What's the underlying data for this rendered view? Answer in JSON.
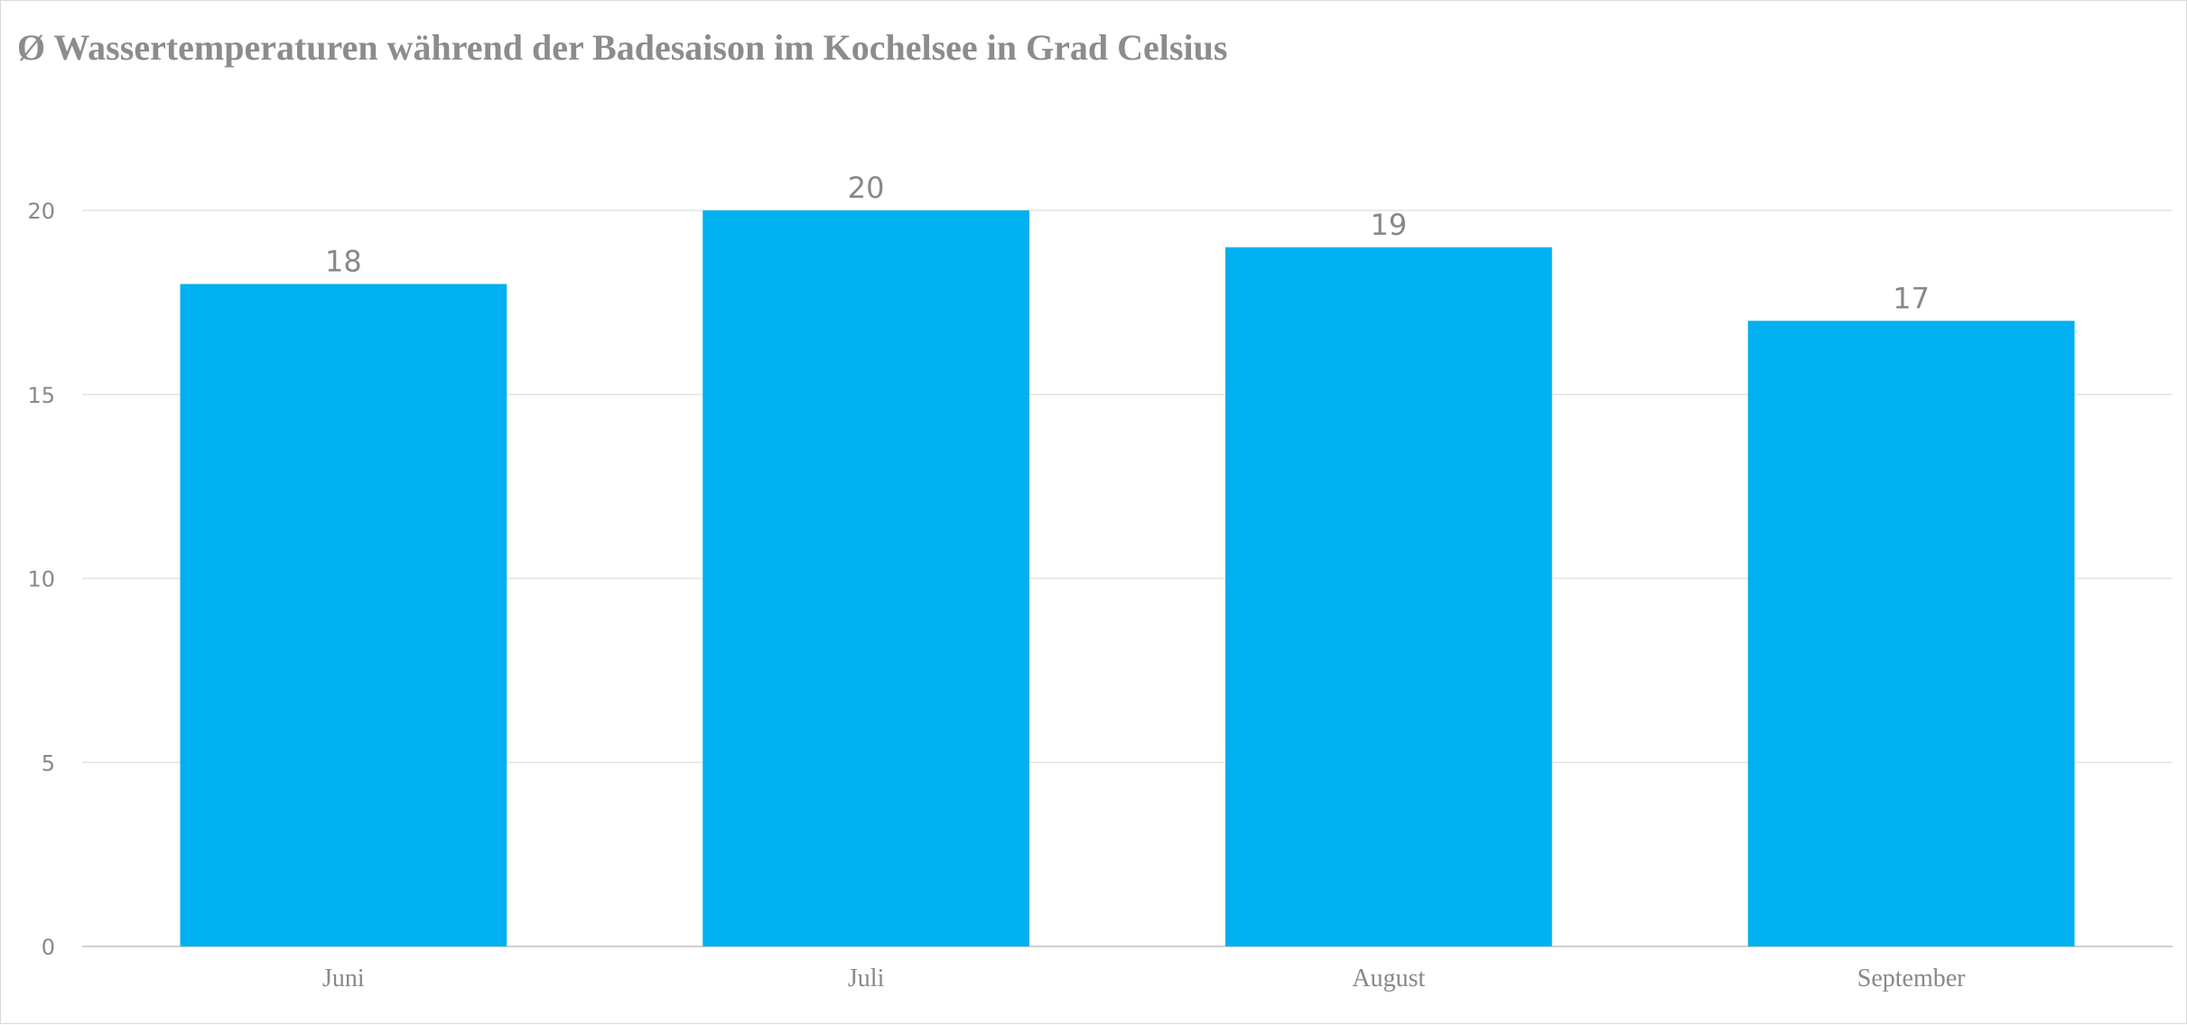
{
  "chart_data": {
    "type": "bar",
    "title": "Ø Wassertemperaturen während der Badesaison im Kochelsee in Grad Celsius",
    "categories": [
      "Juni",
      "Juli",
      "August",
      "September"
    ],
    "values": [
      18,
      20,
      19,
      17
    ],
    "ylim": [
      0,
      20
    ],
    "yticks": [
      0,
      5,
      10,
      15,
      20
    ],
    "grid": true,
    "legend": "none",
    "bar_color": "#00B0F0",
    "data_labels": true
  }
}
